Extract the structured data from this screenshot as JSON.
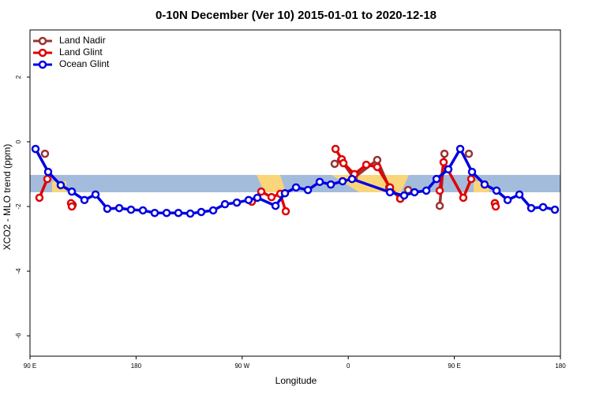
{
  "chart_data": {
    "type": "line",
    "title": "0-10N December (Ver 10)   2015-01-01 to 2020-12-18",
    "x_label": "Longitude",
    "y_label": "XCO2 - MLO trend (ppm)",
    "xlim": [
      90,
      540
    ],
    "ylim": [
      -6.63,
      3.46
    ],
    "xticks": [
      {
        "value": 90,
        "label": "90 E"
      },
      {
        "value": 180,
        "label": "180"
      },
      {
        "value": 270,
        "label": "90 W"
      },
      {
        "value": 360,
        "label": "0"
      },
      {
        "value": 450,
        "label": "90 E"
      },
      {
        "value": 540,
        "label": "180"
      }
    ],
    "yticks": [
      2,
      0,
      -2,
      -4,
      -6
    ],
    "legend": "top-left",
    "series": [
      {
        "name": "Land Nadir",
        "color": "#993333",
        "x": [
          102.7,
          null,
          126.2,
          null,
          348.5,
          353.9,
          364.6,
          384.6,
          394.7,
          404.1,
          410.8,
          null,
          437.6,
          441.6,
          null,
          462.3,
          null,
          484.4
        ],
        "values": [
          -0.37,
          null,
          -1.95,
          null,
          -0.68,
          -0.56,
          -1.12,
          -0.56,
          -1.41,
          -1.76,
          -1.49,
          null,
          -1.98,
          -0.37,
          null,
          -0.37,
          null,
          -1.9
        ]
      },
      {
        "name": "Land Glint",
        "color": "#e00000",
        "x": [
          98.0,
          104.7,
          null,
          124.8,
          125.5,
          null,
          278.2,
          286.2,
          294.9,
          302.3,
          307.0,
          null,
          349.2,
          354.5,
          355.9,
          365.2,
          375.3,
          384.6,
          395.4,
          404.1,
          null,
          437.6,
          440.9,
          457.6,
          464.3,
          null,
          484.4,
          485.1
        ],
        "values": [
          -1.73,
          -1.15,
          null,
          -1.9,
          -2.0,
          null,
          -1.85,
          -1.54,
          -1.71,
          -1.61,
          -2.15,
          null,
          -0.22,
          -0.54,
          -0.66,
          -1.0,
          -0.71,
          -0.78,
          -1.41,
          -1.76,
          null,
          -1.51,
          -0.63,
          -1.73,
          -1.15,
          null,
          -1.9,
          -2.0
        ]
      },
      {
        "name": "Ocean Glint",
        "color": "#0000e0",
        "x": [
          94.7,
          105.4,
          116.1,
          125.5,
          136.2,
          145.6,
          155.6,
          165.7,
          175.7,
          185.8,
          195.8,
          205.9,
          215.9,
          226.0,
          235.3,
          245.4,
          255.4,
          265.5,
          275.5,
          282.9,
          298.3,
          306.3,
          315.7,
          325.8,
          335.8,
          345.2,
          355.2,
          363.2,
          395.4,
          407.4,
          416.2,
          426.2,
          434.9,
          444.9,
          455.0,
          465.0,
          475.7,
          485.8,
          495.2,
          505.2,
          515.2,
          525.3,
          535.3
        ],
        "values": [
          -0.22,
          -0.93,
          -1.34,
          -1.54,
          -1.8,
          -1.63,
          -2.07,
          -2.05,
          -2.1,
          -2.12,
          -2.2,
          -2.2,
          -2.2,
          -2.22,
          -2.17,
          -2.12,
          -1.93,
          -1.88,
          -1.8,
          -1.73,
          -1.98,
          -1.59,
          -1.41,
          -1.49,
          -1.24,
          -1.32,
          -1.22,
          -1.15,
          -1.56,
          -1.66,
          -1.56,
          -1.51,
          -1.15,
          -0.85,
          -0.22,
          -0.93,
          -1.32,
          -1.51,
          -1.8,
          -1.63,
          -2.05,
          -2.02,
          -2.1
        ]
      }
    ]
  }
}
